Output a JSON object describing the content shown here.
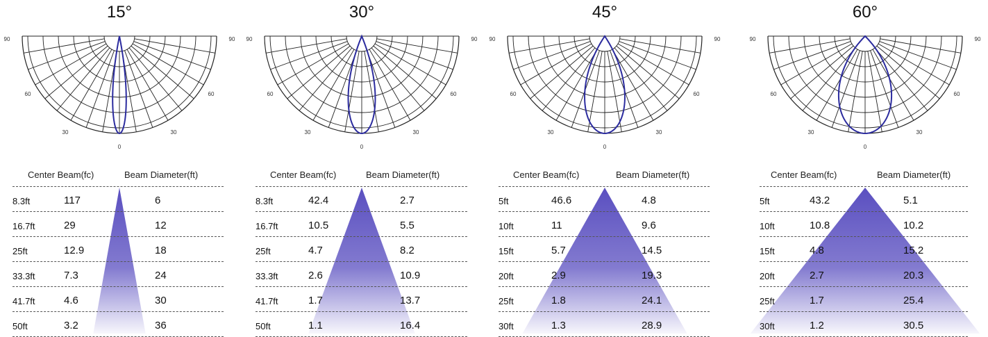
{
  "chart_data": [
    {
      "type": "table",
      "title": "15°",
      "beam_angle_deg": 15,
      "polar_axis_labels": [
        "90",
        "60",
        "30",
        "0",
        "30",
        "60",
        "90"
      ],
      "headers": [
        "Center Beam(fc)",
        "Beam Diameter(ft)"
      ],
      "rows": [
        {
          "distance": "8.3ft",
          "center": "117",
          "diameter": "6"
        },
        {
          "distance": "16.7ft",
          "center": "29",
          "diameter": "12"
        },
        {
          "distance": "25ft",
          "center": "12.9",
          "diameter": "18"
        },
        {
          "distance": "33.3ft",
          "center": "7.3",
          "diameter": "24"
        },
        {
          "distance": "41.7ft",
          "center": "4.6",
          "diameter": "30"
        },
        {
          "distance": "50ft",
          "center": "3.2",
          "diameter": "36"
        }
      ]
    },
    {
      "type": "table",
      "title": "30°",
      "beam_angle_deg": 30,
      "polar_axis_labels": [
        "90",
        "60",
        "30",
        "0",
        "30",
        "60",
        "90"
      ],
      "headers": [
        "Center Beam(fc)",
        "Beam Diameter(ft)"
      ],
      "rows": [
        {
          "distance": "8.3ft",
          "center": "42.4",
          "diameter": "2.7"
        },
        {
          "distance": "16.7ft",
          "center": "10.5",
          "diameter": "5.5"
        },
        {
          "distance": "25ft",
          "center": "4.7",
          "diameter": "8.2"
        },
        {
          "distance": "33.3ft",
          "center": "2.6",
          "diameter": "10.9"
        },
        {
          "distance": "41.7ft",
          "center": "1.7",
          "diameter": "13.7"
        },
        {
          "distance": "50ft",
          "center": "1.1",
          "diameter": "16.4"
        }
      ]
    },
    {
      "type": "table",
      "title": "45°",
      "beam_angle_deg": 45,
      "polar_axis_labels": [
        "90",
        "60",
        "30",
        "0",
        "30",
        "60",
        "90"
      ],
      "headers": [
        "Center Beam(fc)",
        "Beam Diameter(ft)"
      ],
      "rows": [
        {
          "distance": "5ft",
          "center": "46.6",
          "diameter": "4.8"
        },
        {
          "distance": "10ft",
          "center": "11",
          "diameter": "9.6"
        },
        {
          "distance": "15ft",
          "center": "5.7",
          "diameter": "14.5"
        },
        {
          "distance": "20ft",
          "center": "2.9",
          "diameter": "19.3"
        },
        {
          "distance": "25ft",
          "center": "1.8",
          "diameter": "24.1"
        },
        {
          "distance": "30ft",
          "center": "1.3",
          "diameter": "28.9"
        }
      ]
    },
    {
      "type": "table",
      "title": "60°",
      "beam_angle_deg": 60,
      "polar_axis_labels": [
        "90",
        "60",
        "30",
        "0",
        "30",
        "60",
        "90"
      ],
      "headers": [
        "Center Beam(fc)",
        "Beam Diameter(ft)"
      ],
      "rows": [
        {
          "distance": "5ft",
          "center": "43.2",
          "diameter": "5.1"
        },
        {
          "distance": "10ft",
          "center": "10.8",
          "diameter": "10.2"
        },
        {
          "distance": "15ft",
          "center": "4.8",
          "diameter": "15.2"
        },
        {
          "distance": "20ft",
          "center": "2.7",
          "diameter": "20.3"
        },
        {
          "distance": "25ft",
          "center": "1.7",
          "diameter": "25.4"
        },
        {
          "distance": "30ft",
          "center": "1.2",
          "diameter": "30.5"
        }
      ]
    }
  ],
  "colors": {
    "curve": "#2b2b9e",
    "cone_top": "#5a4fc0",
    "cone_bottom": "#ffffff",
    "grid": "#222222",
    "divider": "#555555"
  }
}
